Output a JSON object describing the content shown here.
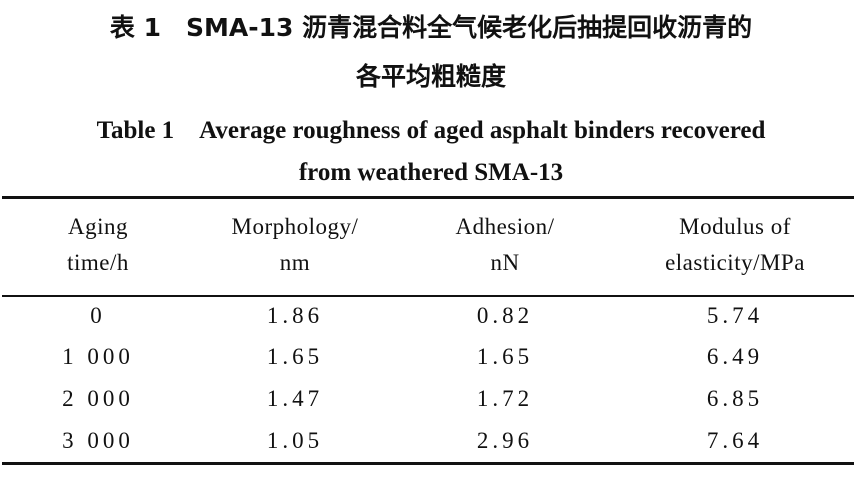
{
  "caption": {
    "zh_line1": "表 1　SMA-13 沥青混合料全气候老化后抽提回收沥青的",
    "zh_line2": "各平均粗糙度",
    "en_line1": "Table 1　Average roughness of aged asphalt binders recovered",
    "en_line2": "from weathered SMA-13"
  },
  "table": {
    "headers": [
      [
        "Aging",
        "time/h"
      ],
      [
        "Morphology/",
        "nm"
      ],
      [
        "Adhesion/",
        "nN"
      ],
      [
        "Modulus of",
        "elasticity/MPa"
      ]
    ],
    "rows": [
      [
        "0",
        "1.86",
        "0.82",
        "5.74"
      ],
      [
        "1 000",
        "1.65",
        "1.65",
        "6.49"
      ],
      [
        "2 000",
        "1.47",
        "1.72",
        "6.85"
      ],
      [
        "3 000",
        "1.05",
        "2.96",
        "7.64"
      ]
    ]
  }
}
